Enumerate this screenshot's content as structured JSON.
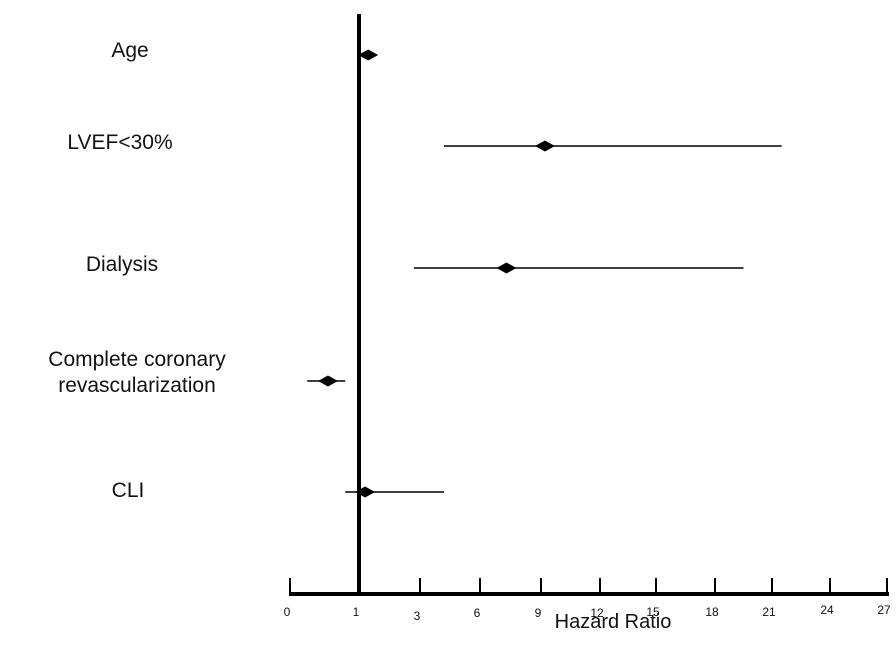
{
  "chart_data": {
    "type": "forest",
    "xlabel": "Hazard Ratio",
    "x_ticks": [
      0,
      1,
      3,
      6,
      9,
      12,
      15,
      18,
      21,
      24,
      27
    ],
    "x_tick_labels": [
      "0",
      "1",
      "3",
      "6",
      "9",
      "12",
      "15",
      "18",
      "21",
      "24",
      "27"
    ],
    "reference_line": 1,
    "rows": [
      {
        "label": "Age",
        "hr": 1.3,
        "ci_low": 1.1,
        "ci_high": 1.5
      },
      {
        "label": "LVEF<30%",
        "hr": 9.2,
        "ci_low": 4.2,
        "ci_high": 21.5
      },
      {
        "label": "Dialysis",
        "hr": 7.3,
        "ci_low": 2.8,
        "ci_high": 19.5
      },
      {
        "label": "Complete coronary revascularization",
        "hr": 0.55,
        "ci_low": 0.25,
        "ci_high": 0.8
      },
      {
        "label": "CLI",
        "hr": 1.2,
        "ci_low": 0.8,
        "ci_high": 4.2
      }
    ],
    "colors": {
      "marks": "#000000"
    }
  }
}
